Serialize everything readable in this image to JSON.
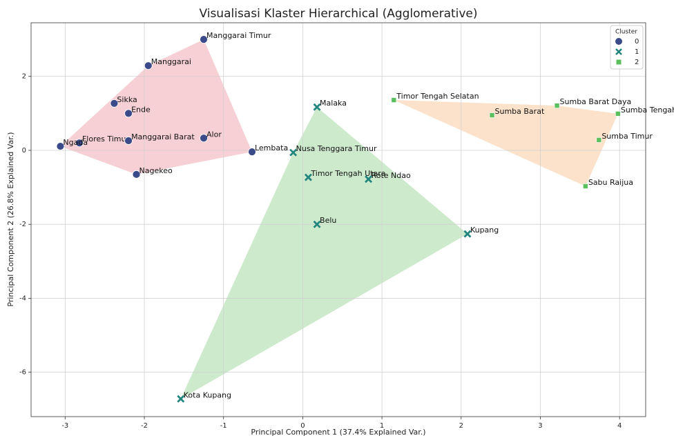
{
  "chart_data": {
    "type": "scatter",
    "title": "Visualisasi Klaster Hierarchical (Agglomerative)",
    "xlabel": "Principal Component 1 (37.4% Explained Var.)",
    "ylabel": "Principal Component 2 (26.8% Explained Var.)",
    "xlim": [
      -3.43,
      4.33
    ],
    "ylim": [
      -7.2,
      3.45
    ],
    "xticks": [
      -3,
      -2,
      -1,
      0,
      1,
      2,
      3,
      4
    ],
    "yticks": [
      -6,
      -4,
      -2,
      0,
      2
    ],
    "grid": true,
    "legend_title": "Cluster",
    "legend_position": "upper right",
    "series": [
      {
        "name": "0",
        "marker": "circle",
        "color": "#3b4b8a",
        "hull_color": "#e8848e",
        "labels": [
          "Manggarai Timur",
          "Manggarai",
          "Sikka",
          "Ende",
          "Flores Timur",
          "Ngada",
          "Manggarai Barat",
          "Alor",
          "Lembata",
          "Nagekeo"
        ],
        "x": [
          -1.25,
          -1.95,
          -2.38,
          -2.2,
          -2.82,
          -3.06,
          -2.2,
          -1.25,
          -0.64,
          -2.1
        ],
        "values": [
          3.0,
          2.29,
          1.27,
          1.0,
          0.2,
          0.11,
          0.26,
          0.33,
          -0.04,
          -0.65
        ]
      },
      {
        "name": "1",
        "marker": "x",
        "color": "#23867e",
        "hull_color": "#7cc77a",
        "labels": [
          "Malaka",
          "Nusa Tenggara Timur",
          "Timor Tengah Utara",
          "Rote Ndao",
          "Belu",
          "Kupang",
          "Kota Kupang"
        ],
        "x": [
          0.18,
          -0.12,
          0.07,
          0.83,
          0.18,
          2.08,
          -1.54
        ],
        "values": [
          1.17,
          -0.06,
          -0.73,
          -0.78,
          -2.0,
          -2.26,
          -6.72
        ]
      },
      {
        "name": "2",
        "marker": "square",
        "color": "#5cbf5e",
        "hull_color": "#f7b277",
        "labels": [
          "Timor Tengah Selatan",
          "Sumba Barat",
          "Sumba Barat Daya",
          "Sumba Tengah",
          "Sumba Timur",
          "Sabu Raijua"
        ],
        "x": [
          1.15,
          2.39,
          3.21,
          3.98,
          3.74,
          3.57
        ],
        "values": [
          1.36,
          0.95,
          1.21,
          0.99,
          0.28,
          -0.97
        ]
      }
    ]
  }
}
